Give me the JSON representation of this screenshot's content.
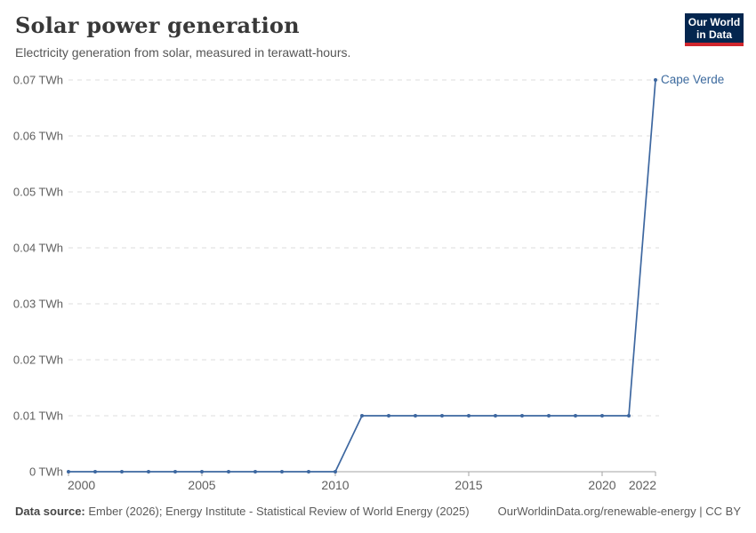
{
  "header": {
    "title": "Solar power generation",
    "subtitle": "Electricity generation from solar, measured in terawatt-hours."
  },
  "logo": {
    "line1": "Our World",
    "line2": "in Data",
    "bg_color": "#04264f",
    "accent_color": "#d0262d"
  },
  "chart_data": {
    "type": "line",
    "title": "Solar power generation",
    "subtitle": "Electricity generation from solar, measured in terawatt-hours.",
    "entity": "Cape Verde",
    "unit": "TWh",
    "x": [
      2000,
      2001,
      2002,
      2003,
      2004,
      2005,
      2006,
      2007,
      2008,
      2009,
      2010,
      2011,
      2012,
      2013,
      2014,
      2015,
      2016,
      2017,
      2018,
      2019,
      2020,
      2021,
      2022
    ],
    "values": [
      0,
      0,
      0,
      0,
      0,
      0,
      0,
      0,
      0,
      0,
      0,
      0.01,
      0.01,
      0.01,
      0.01,
      0.01,
      0.01,
      0.01,
      0.01,
      0.01,
      0.01,
      0.01,
      0.07
    ],
    "x_ticks": [
      2000,
      2005,
      2010,
      2015,
      2020,
      2022
    ],
    "x_tick_labels": [
      "2000",
      "2005",
      "2010",
      "2015",
      "2020",
      "2022"
    ],
    "y_ticks": [
      0,
      0.01,
      0.02,
      0.03,
      0.04,
      0.05,
      0.06,
      0.07
    ],
    "y_tick_labels": [
      "0 TWh",
      "0.01 TWh",
      "0.02 TWh",
      "0.03 TWh",
      "0.04 TWh",
      "0.05 TWh",
      "0.06 TWh",
      "0.07 TWh"
    ],
    "xlim": [
      2000,
      2022
    ],
    "ylim": [
      0,
      0.07
    ],
    "grid": "horizontal-dashed",
    "legend_position": "end-of-line",
    "line_color": "#3d67a0",
    "label_color": "#3c6a9e",
    "gridline_color": "#dcdcdc",
    "axis_color": "#a3a3a3",
    "tick_text_color": "#5f5f5f"
  },
  "footer": {
    "sources_label": "Data source:",
    "sources_text": "Ember (2026); Energy Institute - Statistical Review of World Energy (2025)",
    "link_text": "OurWorldinData.org/renewable-energy | CC BY"
  }
}
